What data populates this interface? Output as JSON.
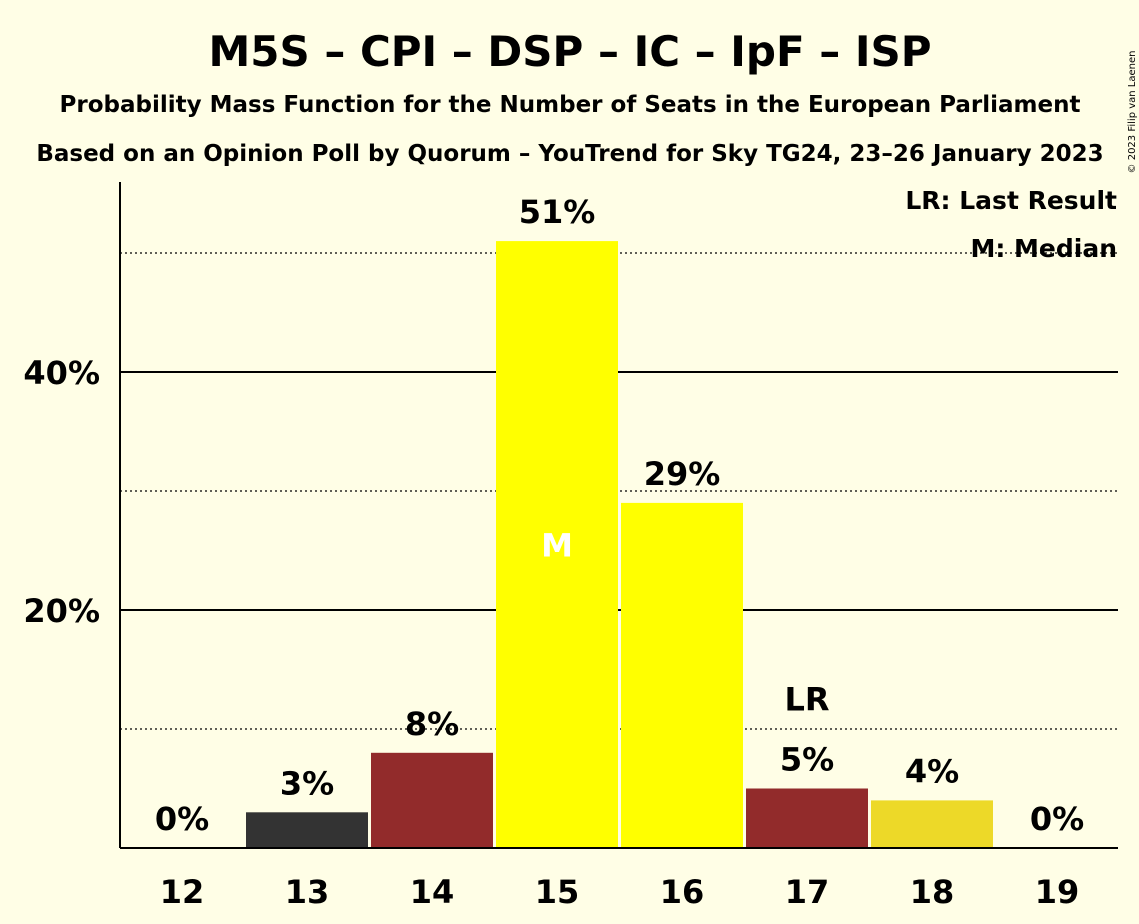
{
  "chart_data": {
    "type": "bar",
    "title": "M5S – CPI – DSP – IC – IpF – ISP",
    "subtitle": "Probability Mass Function for the Number of Seats in the European Parliament",
    "subtitle2": "Based on an Opinion Poll by Quorum – YouTrend for Sky TG24, 23–26 January 2023",
    "copyright": "© 2023 Filip van Laenen",
    "categories": [
      "12",
      "13",
      "14",
      "15",
      "16",
      "17",
      "18",
      "19"
    ],
    "values": [
      0,
      3,
      8,
      51,
      29,
      5,
      4,
      0
    ],
    "value_labels": [
      "0%",
      "3%",
      "8%",
      "51%",
      "29%",
      "5%",
      "4%",
      "0%"
    ],
    "colors": [
      "#333333",
      "#333333",
      "#922B2B",
      "#FFFF00",
      "#FFFF00",
      "#922B2B",
      "#EDD928",
      "#333333"
    ],
    "ylim": [
      0,
      56
    ],
    "yticks": [
      {
        "value": 20,
        "label": "20%"
      },
      {
        "value": 40,
        "label": "40%"
      }
    ],
    "dotted_gridlines": [
      10,
      30,
      50
    ],
    "median_index": 3,
    "median_marker": "M",
    "last_result_index": 5,
    "last_result_marker": "LR",
    "legend": {
      "position": "top-right",
      "entries": [
        "LR: Last Result",
        "M: Median"
      ]
    }
  }
}
